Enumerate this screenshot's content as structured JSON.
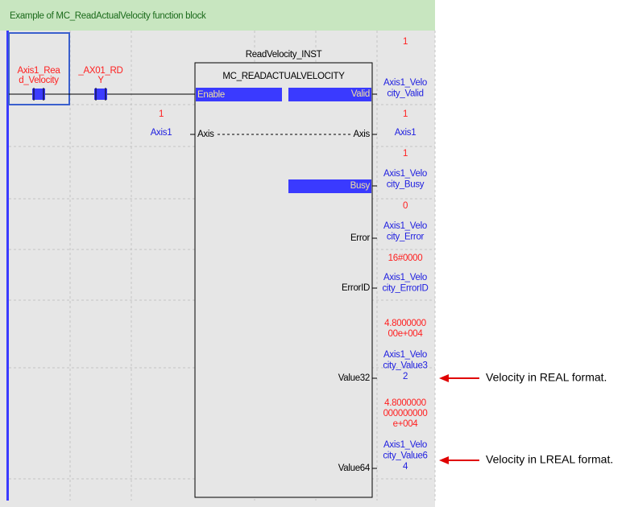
{
  "header": {
    "title": "Example of MC_ReadActualVelocity function block"
  },
  "contacts": [
    {
      "lines": [
        "Axis1_Rea",
        "d_Velocity"
      ]
    },
    {
      "lines": [
        "_AX01_RD",
        "Y"
      ]
    }
  ],
  "function_block": {
    "instance": "ReadVelocity_INST",
    "type": "MC_READACTUALVELOCITY",
    "inputs": [
      {
        "pin": "Enable"
      },
      {
        "pin": "Axis",
        "value": "1",
        "variable": "Axis1"
      }
    ],
    "outputs": [
      {
        "pin": "Valid",
        "value": [
          "1"
        ],
        "variable": [
          "Axis1_Velo",
          "city_Valid"
        ]
      },
      {
        "pin": "Axis",
        "value": [
          "1"
        ],
        "variable": [
          "Axis1"
        ]
      },
      {
        "pin": "Busy",
        "value": [
          "1"
        ],
        "variable": [
          "Axis1_Velo",
          "city_Busy"
        ]
      },
      {
        "pin": "Error",
        "value": [
          "0"
        ],
        "variable": [
          "Axis1_Velo",
          "city_Error"
        ]
      },
      {
        "pin": "ErrorID",
        "value": [
          "16#0000"
        ],
        "variable": [
          "Axis1_Velo",
          "city_ErrorID"
        ]
      },
      {
        "pin": "Value32",
        "value": [
          "4.8000000",
          "00e+004"
        ],
        "variable": [
          "Axis1_Velo",
          "city_Value3",
          "2"
        ]
      },
      {
        "pin": "Value64",
        "value": [
          "4.8000000",
          "000000000",
          "e+004"
        ],
        "variable": [
          "Axis1_Velo",
          "city_Value6",
          "4"
        ]
      }
    ]
  },
  "annotations": [
    "Velocity in REAL format.",
    "Velocity in LREAL format."
  ]
}
